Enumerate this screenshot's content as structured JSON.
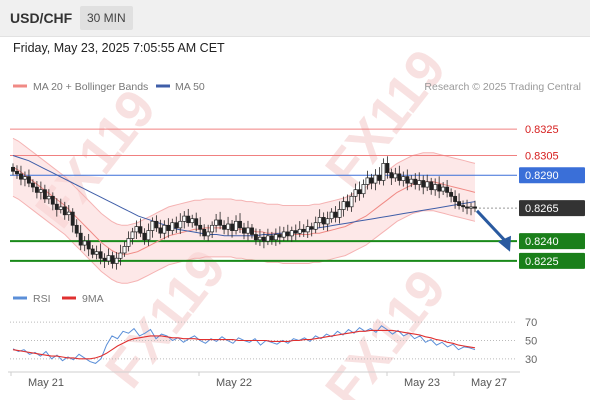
{
  "header": {
    "symbol": "USD/CHF",
    "interval": "30 MIN"
  },
  "timestamp": "Friday, May 23, 2025 7:05:55 AM CET",
  "watermark": "FX119",
  "credit": "Research © 2025 Trading Central",
  "legend": [
    {
      "name": "MA 20 + Bollinger Bands",
      "color": "#f08a85"
    },
    {
      "name": "MA 50",
      "color": "#3f5ea8"
    }
  ],
  "rsi_legend": [
    {
      "name": "RSI",
      "color": "#5b8fd8"
    },
    {
      "name": "9MA",
      "color": "#e03030"
    }
  ],
  "chart_data": {
    "type": "candlestick",
    "price_range": [
      0.8212,
      0.8338
    ],
    "x_ticks": [
      "May 21",
      "May 22",
      "May 23",
      "May 27"
    ],
    "levels": [
      {
        "label": "0.8325",
        "value": 0.8325,
        "kind": "resistance",
        "color": "#f08080"
      },
      {
        "label": "0.8305",
        "value": 0.8305,
        "kind": "resistance",
        "color": "#f08080"
      },
      {
        "label": "0.8290",
        "value": 0.829,
        "kind": "pivot",
        "color": "#3a6fd8"
      },
      {
        "label": "0.8265",
        "value": 0.8265,
        "kind": "current",
        "color": "#333333"
      },
      {
        "label": "0.8240",
        "value": 0.824,
        "kind": "support",
        "color": "#1a8a1a"
      },
      {
        "label": "0.8225",
        "value": 0.8225,
        "kind": "support",
        "color": "#1a8a1a"
      }
    ],
    "closes": [
      0.8293,
      0.8291,
      0.8287,
      0.8289,
      0.8284,
      0.8281,
      0.8277,
      0.8279,
      0.8272,
      0.8274,
      0.8268,
      0.8264,
      0.8266,
      0.826,
      0.8262,
      0.8252,
      0.8246,
      0.8237,
      0.824,
      0.8234,
      0.823,
      0.8232,
      0.8227,
      0.8225,
      0.8229,
      0.8223,
      0.8227,
      0.8231,
      0.8236,
      0.8242,
      0.8247,
      0.8251,
      0.8246,
      0.8241,
      0.8248,
      0.8255,
      0.825,
      0.8246,
      0.8252,
      0.8248,
      0.8254,
      0.825,
      0.8255,
      0.8259,
      0.8254,
      0.8257,
      0.8252,
      0.8249,
      0.8244,
      0.8247,
      0.8252,
      0.8256,
      0.8252,
      0.8249,
      0.8253,
      0.8248,
      0.8255,
      0.825,
      0.8246,
      0.825,
      0.8245,
      0.8241,
      0.8243,
      0.824,
      0.8244,
      0.8241,
      0.8245,
      0.8243,
      0.8247,
      0.8244,
      0.8248,
      0.8246,
      0.8249,
      0.8247,
      0.8251,
      0.8249,
      0.8254,
      0.8258,
      0.8253,
      0.8257,
      0.8262,
      0.8258,
      0.8264,
      0.827,
      0.8266,
      0.8274,
      0.8279,
      0.8276,
      0.8283,
      0.8288,
      0.8284,
      0.829,
      0.8286,
      0.8299,
      0.8292,
      0.8288,
      0.8291,
      0.8286,
      0.8289,
      0.8284,
      0.8287,
      0.8283,
      0.8286,
      0.8281,
      0.8285,
      0.8279,
      0.8283,
      0.8278,
      0.8281,
      0.8277,
      0.8274,
      0.827,
      0.8267,
      0.8266,
      0.8265,
      0.8266,
      0.8265
    ],
    "ma20": [
      0.8296,
      0.8294,
      0.8291,
      0.8288,
      0.8285,
      0.8282,
      0.8279,
      0.8276,
      0.8273,
      0.827,
      0.8267,
      0.8263,
      0.8259,
      0.8255,
      0.8251,
      0.8247,
      0.8243,
      0.8239,
      0.8236,
      0.8233,
      0.8231,
      0.823,
      0.823,
      0.8231,
      0.8232,
      0.8234,
      0.8236,
      0.8238,
      0.824,
      0.8242,
      0.8244,
      0.8245,
      0.8246,
      0.8247,
      0.8248,
      0.8249,
      0.8249,
      0.825,
      0.825,
      0.825,
      0.825,
      0.825,
      0.825,
      0.8249,
      0.8249,
      0.8248,
      0.8248,
      0.8247,
      0.8247,
      0.8246,
      0.8246,
      0.8246,
      0.8245,
      0.8245,
      0.8245,
      0.8245,
      0.8245,
      0.8245,
      0.8246,
      0.8246,
      0.8247,
      0.8248,
      0.8249,
      0.825,
      0.8251,
      0.8253,
      0.8255,
      0.8257,
      0.8259,
      0.8262,
      0.8265,
      0.8268,
      0.8271,
      0.8274,
      0.8277,
      0.8279,
      0.8281,
      0.8283,
      0.8284,
      0.8285,
      0.8285,
      0.8285,
      0.8284,
      0.8283,
      0.8282,
      0.8281,
      0.828,
      0.8279,
      0.8278,
      0.8277
    ],
    "bb_width": 0.0022,
    "ma50": [
      0.8305,
      0.8303,
      0.8301,
      0.8298,
      0.8295,
      0.8292,
      0.8289,
      0.8286,
      0.8283,
      0.828,
      0.8277,
      0.8274,
      0.8271,
      0.8268,
      0.8265,
      0.8262,
      0.8259,
      0.8257,
      0.8255,
      0.8253,
      0.8251,
      0.8249,
      0.8248,
      0.8247,
      0.8246,
      0.8245,
      0.8245,
      0.8244,
      0.8244,
      0.8244,
      0.8244,
      0.8244,
      0.8245,
      0.8245,
      0.8246,
      0.8246,
      0.8247,
      0.8248,
      0.8249,
      0.825,
      0.8251,
      0.8252,
      0.8253,
      0.8254,
      0.8255,
      0.8256,
      0.8257,
      0.8258,
      0.8259,
      0.826,
      0.8261,
      0.8262,
      0.8263,
      0.8264,
      0.8265,
      0.8266,
      0.8267,
      0.8268,
      0.8269,
      0.827
    ],
    "forecast": {
      "from": 0.8263,
      "to": 0.8235
    },
    "rsi_range": [
      20,
      80
    ],
    "rsi_ticks": [
      70,
      50,
      30
    ],
    "rsi": [
      41,
      38,
      40,
      35,
      37,
      33,
      38,
      30,
      34,
      28,
      32,
      29,
      35,
      31,
      27,
      25,
      30,
      45,
      55,
      52,
      60,
      58,
      63,
      55,
      58,
      62,
      52,
      57,
      55,
      50,
      53,
      48,
      52,
      55,
      50,
      47,
      52,
      49,
      54,
      50,
      47,
      53,
      50,
      48,
      52,
      45,
      50,
      48,
      46,
      50,
      47,
      52,
      50,
      53,
      49,
      55,
      52,
      57,
      54,
      60,
      56,
      62,
      58,
      64,
      60,
      63,
      59,
      66,
      62,
      57,
      61,
      55,
      58,
      52,
      55,
      48,
      51,
      45,
      48,
      43,
      46,
      40,
      43,
      42,
      40
    ],
    "rsi_ma": [
      40,
      39,
      38,
      37,
      36,
      35,
      34,
      33,
      33,
      32,
      31,
      31,
      30,
      30,
      30,
      31,
      33,
      36,
      40,
      44,
      47,
      50,
      52,
      53,
      54,
      55,
      55,
      55,
      54,
      53,
      53,
      52,
      52,
      52,
      51,
      51,
      51,
      51,
      51,
      51,
      51,
      50,
      50,
      50,
      50,
      50,
      50,
      49,
      49,
      49,
      49,
      50,
      50,
      51,
      51,
      52,
      53,
      54,
      55,
      56,
      57,
      58,
      59,
      60,
      60,
      61,
      61,
      61,
      61,
      61,
      60,
      59,
      58,
      57,
      56,
      54,
      53,
      51,
      50,
      48,
      47,
      45,
      44,
      43,
      42
    ]
  }
}
